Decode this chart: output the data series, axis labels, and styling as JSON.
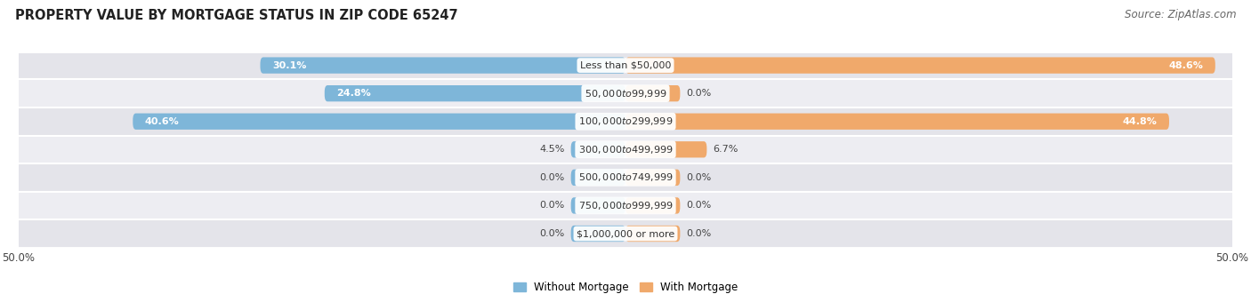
{
  "title": "PROPERTY VALUE BY MORTGAGE STATUS IN ZIP CODE 65247",
  "source": "Source: ZipAtlas.com",
  "categories": [
    "Less than $50,000",
    "$50,000 to $99,999",
    "$100,000 to $299,999",
    "$300,000 to $499,999",
    "$500,000 to $749,999",
    "$750,000 to $999,999",
    "$1,000,000 or more"
  ],
  "without_mortgage": [
    30.1,
    24.8,
    40.6,
    4.5,
    0.0,
    0.0,
    0.0
  ],
  "with_mortgage": [
    48.6,
    0.0,
    44.8,
    6.7,
    0.0,
    0.0,
    0.0
  ],
  "color_without": "#7EB6D9",
  "color_with": "#F0A96B",
  "color_bg_row_odd": "#E4E4EA",
  "color_bg_row_even": "#EDEDF2",
  "stub_size": 4.5,
  "xlim_left": -50,
  "xlim_right": 50,
  "legend_without": "Without Mortgage",
  "legend_with": "With Mortgage",
  "title_fontsize": 10.5,
  "source_fontsize": 8.5,
  "bar_height": 0.58,
  "label_fontsize": 8,
  "cat_fontsize": 8
}
